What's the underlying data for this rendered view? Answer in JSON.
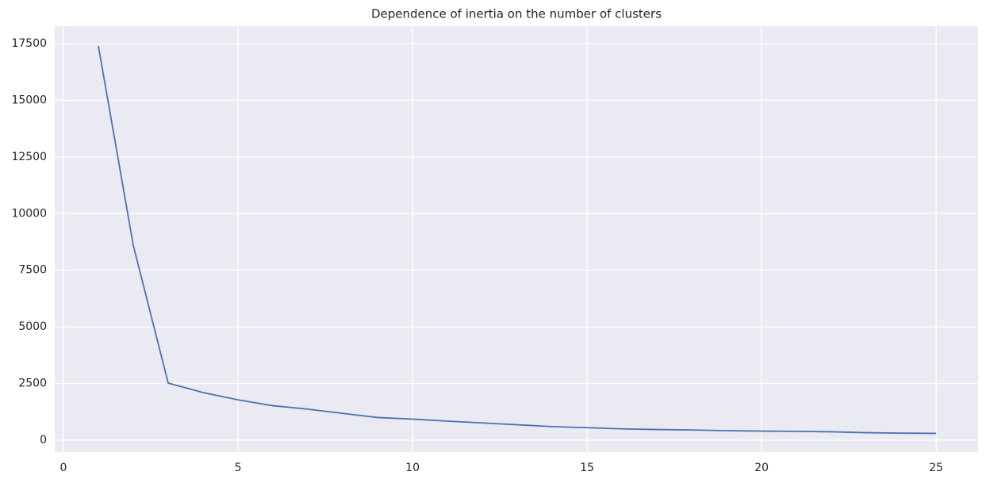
{
  "chart_data": {
    "type": "line",
    "title": "Dependence of inertia on the number of clusters",
    "x": [
      1,
      2,
      3,
      4,
      5,
      6,
      7,
      8,
      9,
      10,
      11,
      12,
      13,
      14,
      15,
      16,
      17,
      18,
      19,
      20,
      21,
      22,
      23,
      24,
      25
    ],
    "series": [
      {
        "name": "inertia",
        "color": "#4c72b0",
        "values": [
          17400,
          8600,
          2520,
          2100,
          1780,
          1520,
          1370,
          1180,
          1000,
          930,
          840,
          760,
          680,
          600,
          550,
          500,
          470,
          450,
          420,
          400,
          390,
          370,
          330,
          310,
          300
        ]
      }
    ],
    "xlim": [
      -0.25,
      26.2
    ],
    "xticks": [
      0,
      5,
      10,
      15,
      20,
      25
    ],
    "ylim": [
      -525,
      18270
    ],
    "yticks": [
      0,
      2500,
      5000,
      7500,
      10000,
      12500,
      15000,
      17500
    ],
    "grid": true
  }
}
